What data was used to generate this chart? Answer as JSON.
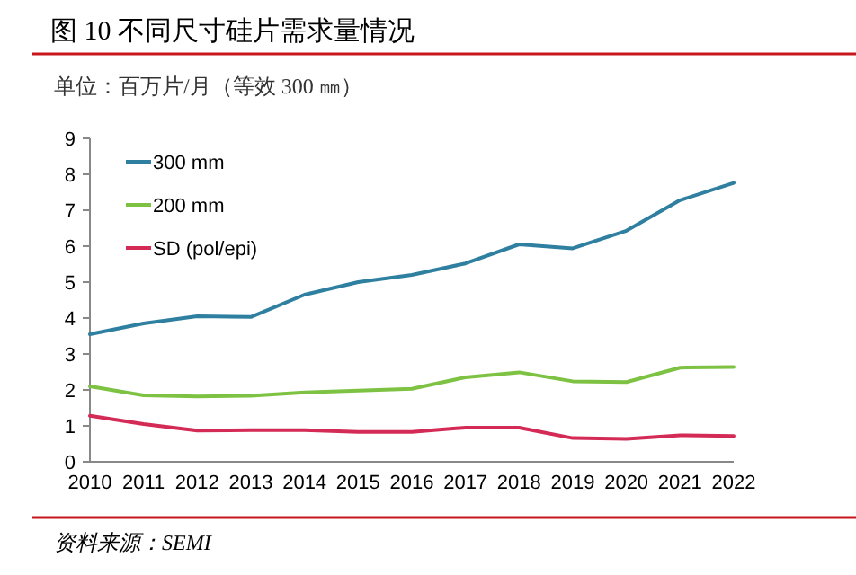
{
  "chart_data": {
    "type": "line",
    "title": "图 10 不同尺寸硅片需求量情况",
    "subtitle": "单位：百万片/月（等效 300 ㎜）",
    "categories": [
      "2010",
      "2011",
      "2012",
      "2013",
      "2014",
      "2015",
      "2016",
      "2017",
      "2018",
      "2019",
      "2020",
      "2021",
      "2022"
    ],
    "series": [
      {
        "name": "300 mm",
        "color": "#2e7fa0",
        "values": [
          3.55,
          3.85,
          4.05,
          4.03,
          4.65,
          5.0,
          5.2,
          5.52,
          6.05,
          5.94,
          6.43,
          7.28,
          7.76
        ]
      },
      {
        "name": "200 mm",
        "color": "#7dc242",
        "values": [
          2.1,
          1.85,
          1.82,
          1.84,
          1.93,
          1.98,
          2.03,
          2.35,
          2.49,
          2.24,
          2.22,
          2.62,
          2.64
        ]
      },
      {
        "name": "SD (pol/epi)",
        "color": "#d42a56",
        "values": [
          1.28,
          1.05,
          0.87,
          0.88,
          0.88,
          0.83,
          0.83,
          0.95,
          0.95,
          0.66,
          0.64,
          0.74,
          0.72
        ]
      }
    ],
    "ylim": [
      0,
      9
    ],
    "yticks": [
      0,
      1,
      2,
      3,
      4,
      5,
      6,
      7,
      8,
      9
    ],
    "grid": false,
    "legend": "top left",
    "marker": "none",
    "line_style": "solid",
    "annotations": [
      "资料来源：SEMI"
    ]
  }
}
